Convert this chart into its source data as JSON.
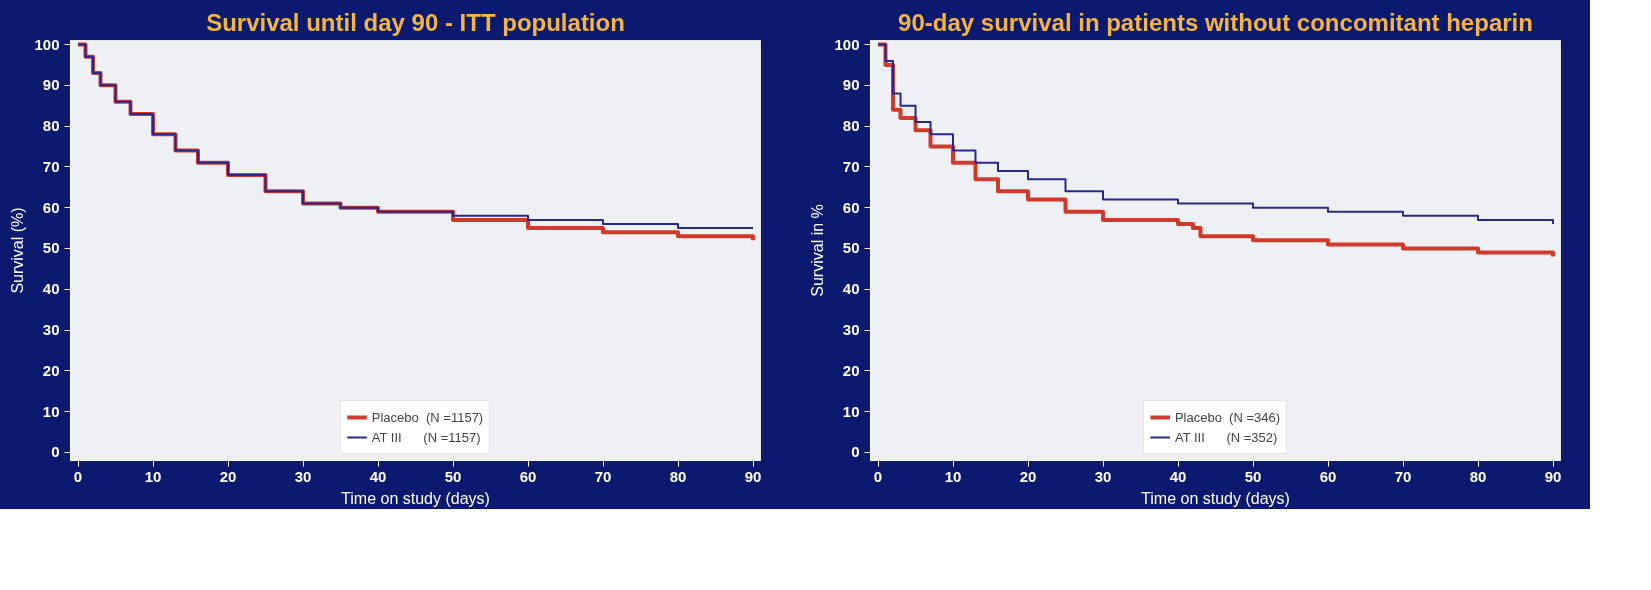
{
  "chart_data": [
    {
      "type": "step",
      "title": "Survival until day 90 - ITT population",
      "xlabel": "Time on study (days)",
      "ylabel": "Survival (%)",
      "xlim": [
        -1,
        91
      ],
      "ylim": [
        -2,
        101
      ],
      "xticks": [
        0,
        10,
        20,
        30,
        40,
        50,
        60,
        70,
        80,
        90
      ],
      "yticks": [
        0,
        10,
        20,
        30,
        40,
        50,
        60,
        70,
        80,
        90,
        100
      ],
      "grid": false,
      "legend": "bottom",
      "series": [
        {
          "name": "Placebo  (N =1157)",
          "color": "#d03a2a",
          "x": [
            0,
            1,
            2,
            3,
            5,
            7,
            10,
            13,
            16,
            20,
            25,
            30,
            35,
            40,
            50,
            60,
            70,
            80,
            90
          ],
          "values": [
            100,
            97,
            93,
            90,
            86,
            83,
            78,
            74,
            71,
            68,
            64,
            61,
            60,
            59,
            57,
            55,
            54,
            53,
            52
          ]
        },
        {
          "name": "AT III      (N =1157)",
          "color": "#28288f",
          "x": [
            0,
            1,
            2,
            3,
            5,
            7,
            10,
            13,
            16,
            20,
            25,
            30,
            35,
            40,
            50,
            60,
            70,
            80,
            90
          ],
          "values": [
            100,
            97,
            93,
            90,
            86,
            83,
            78,
            74,
            71,
            68,
            64,
            61,
            60,
            59,
            58,
            57,
            56,
            55,
            55
          ]
        }
      ]
    },
    {
      "type": "step",
      "title": "90-day survival in patients without concomitant heparin",
      "xlabel": "Time on study (days)",
      "ylabel": "Survival in %",
      "xlim": [
        -1,
        91
      ],
      "ylim": [
        -2,
        101
      ],
      "xticks": [
        0,
        10,
        20,
        30,
        40,
        50,
        60,
        70,
        80,
        90
      ],
      "yticks": [
        0,
        10,
        20,
        30,
        40,
        50,
        60,
        70,
        80,
        90,
        100
      ],
      "grid": false,
      "legend": "bottom",
      "series": [
        {
          "name": "Placebo  (N =346)",
          "color": "#d03a2a",
          "x": [
            0,
            1,
            2,
            3,
            5,
            7,
            10,
            13,
            16,
            20,
            25,
            30,
            40,
            42,
            43,
            50,
            60,
            70,
            80,
            90
          ],
          "values": [
            100,
            95,
            84,
            82,
            79,
            75,
            71,
            67,
            64,
            62,
            59,
            57,
            56,
            55,
            53,
            52,
            51,
            50,
            49,
            48
          ]
        },
        {
          "name": "AT III      (N =352)",
          "color": "#28288f",
          "x": [
            0,
            1,
            2,
            3,
            5,
            7,
            10,
            13,
            16,
            20,
            25,
            30,
            40,
            50,
            60,
            70,
            80,
            90
          ],
          "values": [
            100,
            96,
            88,
            85,
            81,
            78,
            74,
            71,
            69,
            67,
            64,
            62,
            61,
            60,
            59,
            58,
            57,
            56
          ]
        }
      ]
    }
  ]
}
